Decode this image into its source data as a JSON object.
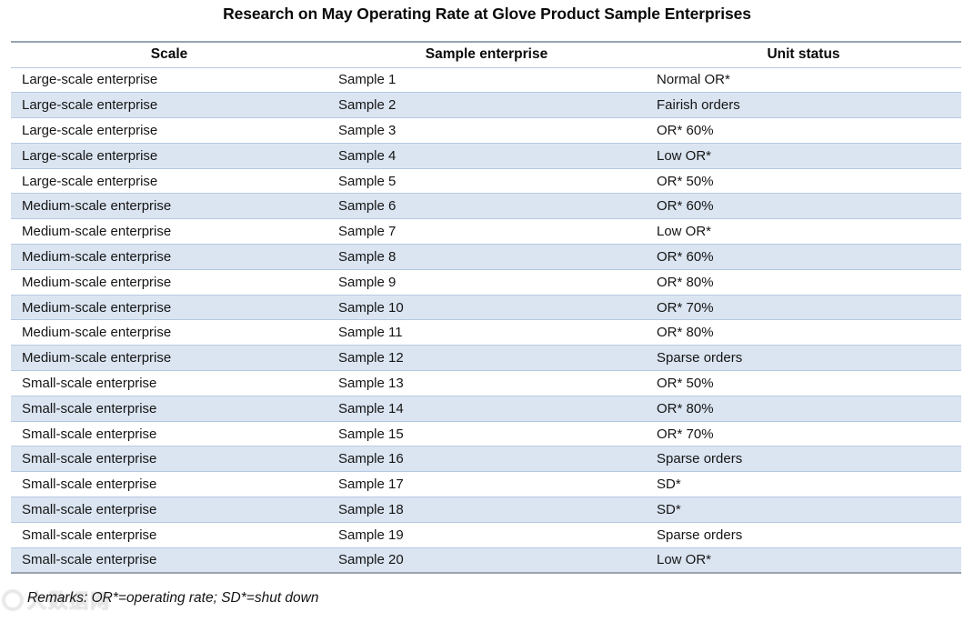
{
  "page": {
    "title": "Research on May Operating Rate at Glove Product Sample Enterprises"
  },
  "table": {
    "headers": [
      "Scale",
      "Sample enterprise",
      "Unit status"
    ],
    "rows": [
      {
        "scale": "Large-scale enterprise",
        "sample": "Sample 1",
        "status": "Normal OR*"
      },
      {
        "scale": "Large-scale enterprise",
        "sample": "Sample 2",
        "status": "Fairish orders"
      },
      {
        "scale": "Large-scale enterprise",
        "sample": "Sample 3",
        "status": "OR* 60%"
      },
      {
        "scale": "Large-scale enterprise",
        "sample": "Sample 4",
        "status": "Low OR*"
      },
      {
        "scale": "Large-scale enterprise",
        "sample": "Sample 5",
        "status": "OR* 50%"
      },
      {
        "scale": "Medium-scale enterprise",
        "sample": "Sample 6",
        "status": "OR* 60%"
      },
      {
        "scale": "Medium-scale enterprise",
        "sample": "Sample 7",
        "status": "Low OR*"
      },
      {
        "scale": "Medium-scale enterprise",
        "sample": "Sample 8",
        "status": "OR* 60%"
      },
      {
        "scale": "Medium-scale enterprise",
        "sample": "Sample 9",
        "status": "OR* 80%"
      },
      {
        "scale": "Medium-scale enterprise",
        "sample": "Sample 10",
        "status": "OR* 70%"
      },
      {
        "scale": "Medium-scale enterprise",
        "sample": "Sample 11",
        "status": "OR* 80%"
      },
      {
        "scale": "Medium-scale enterprise",
        "sample": "Sample 12",
        "status": "Sparse orders"
      },
      {
        "scale": "Small-scale enterprise",
        "sample": "Sample 13",
        "status": "OR* 50%"
      },
      {
        "scale": "Small-scale enterprise",
        "sample": "Sample 14",
        "status": "OR* 80%"
      },
      {
        "scale": "Small-scale enterprise",
        "sample": "Sample 15",
        "status": "OR* 70%"
      },
      {
        "scale": "Small-scale enterprise",
        "sample": "Sample 16",
        "status": "Sparse orders"
      },
      {
        "scale": "Small-scale enterprise",
        "sample": "Sample 17",
        "status": "SD*"
      },
      {
        "scale": "Small-scale enterprise",
        "sample": "Sample 18",
        "status": "SD*"
      },
      {
        "scale": "Small-scale enterprise",
        "sample": "Sample 19",
        "status": "Sparse orders"
      },
      {
        "scale": "Small-scale enterprise",
        "sample": "Sample 20",
        "status": "Low OR*"
      }
    ]
  },
  "remarks": "Remarks: OR*=operating rate; SD*=shut down",
  "watermark": {
    "text": "大数据网"
  },
  "colors": {
    "band": "#dbe5f1",
    "separator": "#b7c9e2",
    "table_border": "#9aa4b2"
  }
}
